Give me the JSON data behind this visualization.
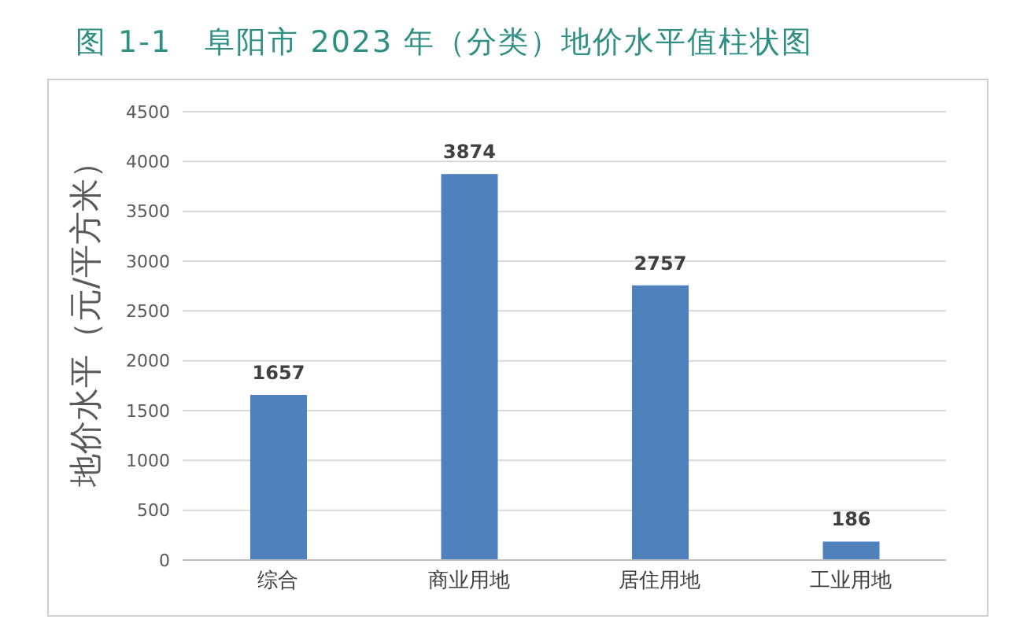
{
  "chart_data": {
    "type": "bar",
    "title": "图 1-1   阜阳市 2023 年（分类）地价水平值柱状图",
    "ylabel": "地价水平（元/平方米）",
    "categories": [
      "综合",
      "商业用地",
      "居住用地",
      "工业用地"
    ],
    "values": [
      1657,
      3874,
      2757,
      186
    ],
    "color": "#4f81bd",
    "ylim": [
      0,
      4500
    ],
    "yticks": [
      0,
      500,
      1000,
      1500,
      2000,
      2500,
      3000,
      3500,
      4000,
      4500
    ],
    "grid": "y",
    "data_labels": true
  }
}
